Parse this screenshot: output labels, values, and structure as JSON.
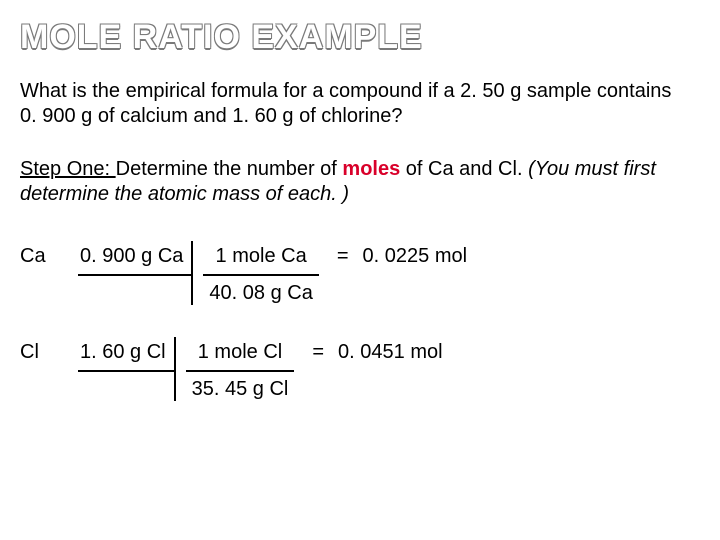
{
  "title": "MOLE RATIO EXAMPLE",
  "question": "What is the empirical formula for a compound if a 2. 50 g sample contains 0. 900 g of calcium and 1. 60 g of chlorine?",
  "step": {
    "label": "Step One: ",
    "text_before": "Determine the number of ",
    "highlight": "moles",
    "text_after": " of Ca and Cl.  ",
    "italic": "(You must first determine the atomic mass of each. )"
  },
  "rows": [
    {
      "element": "Ca",
      "mass": "0. 900 g Ca",
      "conv_top": "1 mole Ca",
      "conv_bot": "40. 08 g Ca",
      "eq": "=",
      "result": "0. 0225 mol"
    },
    {
      "element": "Cl",
      "mass": "1. 60 g Cl",
      "conv_top": "1 mole Cl",
      "conv_bot": "35. 45 g Cl",
      "eq": "=",
      "result": "0. 0451 mol"
    }
  ],
  "colors": {
    "highlight": "#d9002a",
    "title_outline": "#7a7a7a",
    "text": "#000000",
    "background": "#ffffff"
  }
}
